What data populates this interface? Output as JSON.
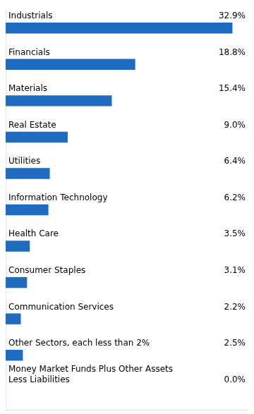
{
  "chart_data": {
    "type": "bar",
    "orientation": "horizontal",
    "categories": [
      "Industrials",
      "Financials",
      "Materials",
      "Real Estate",
      "Utilities",
      "Information Technology",
      "Health Care",
      "Consumer Staples",
      "Communication Services",
      "Other Sectors, each less than 2%",
      "Money Market Funds Plus Other Assets\nLess Liabilities"
    ],
    "values": [
      32.9,
      18.8,
      15.4,
      9.0,
      6.4,
      6.2,
      3.5,
      3.1,
      2.2,
      2.5,
      0.0
    ],
    "value_labels": [
      "32.9%",
      "18.8%",
      "15.4%",
      "9.0%",
      "6.4%",
      "6.2%",
      "3.5%",
      "3.1%",
      "2.2%",
      "2.5%",
      "0.0%"
    ],
    "data_labels": true,
    "color": "#1f6bbf",
    "xlim": [
      0,
      35
    ],
    "grid": false,
    "tick_labels": false
  }
}
